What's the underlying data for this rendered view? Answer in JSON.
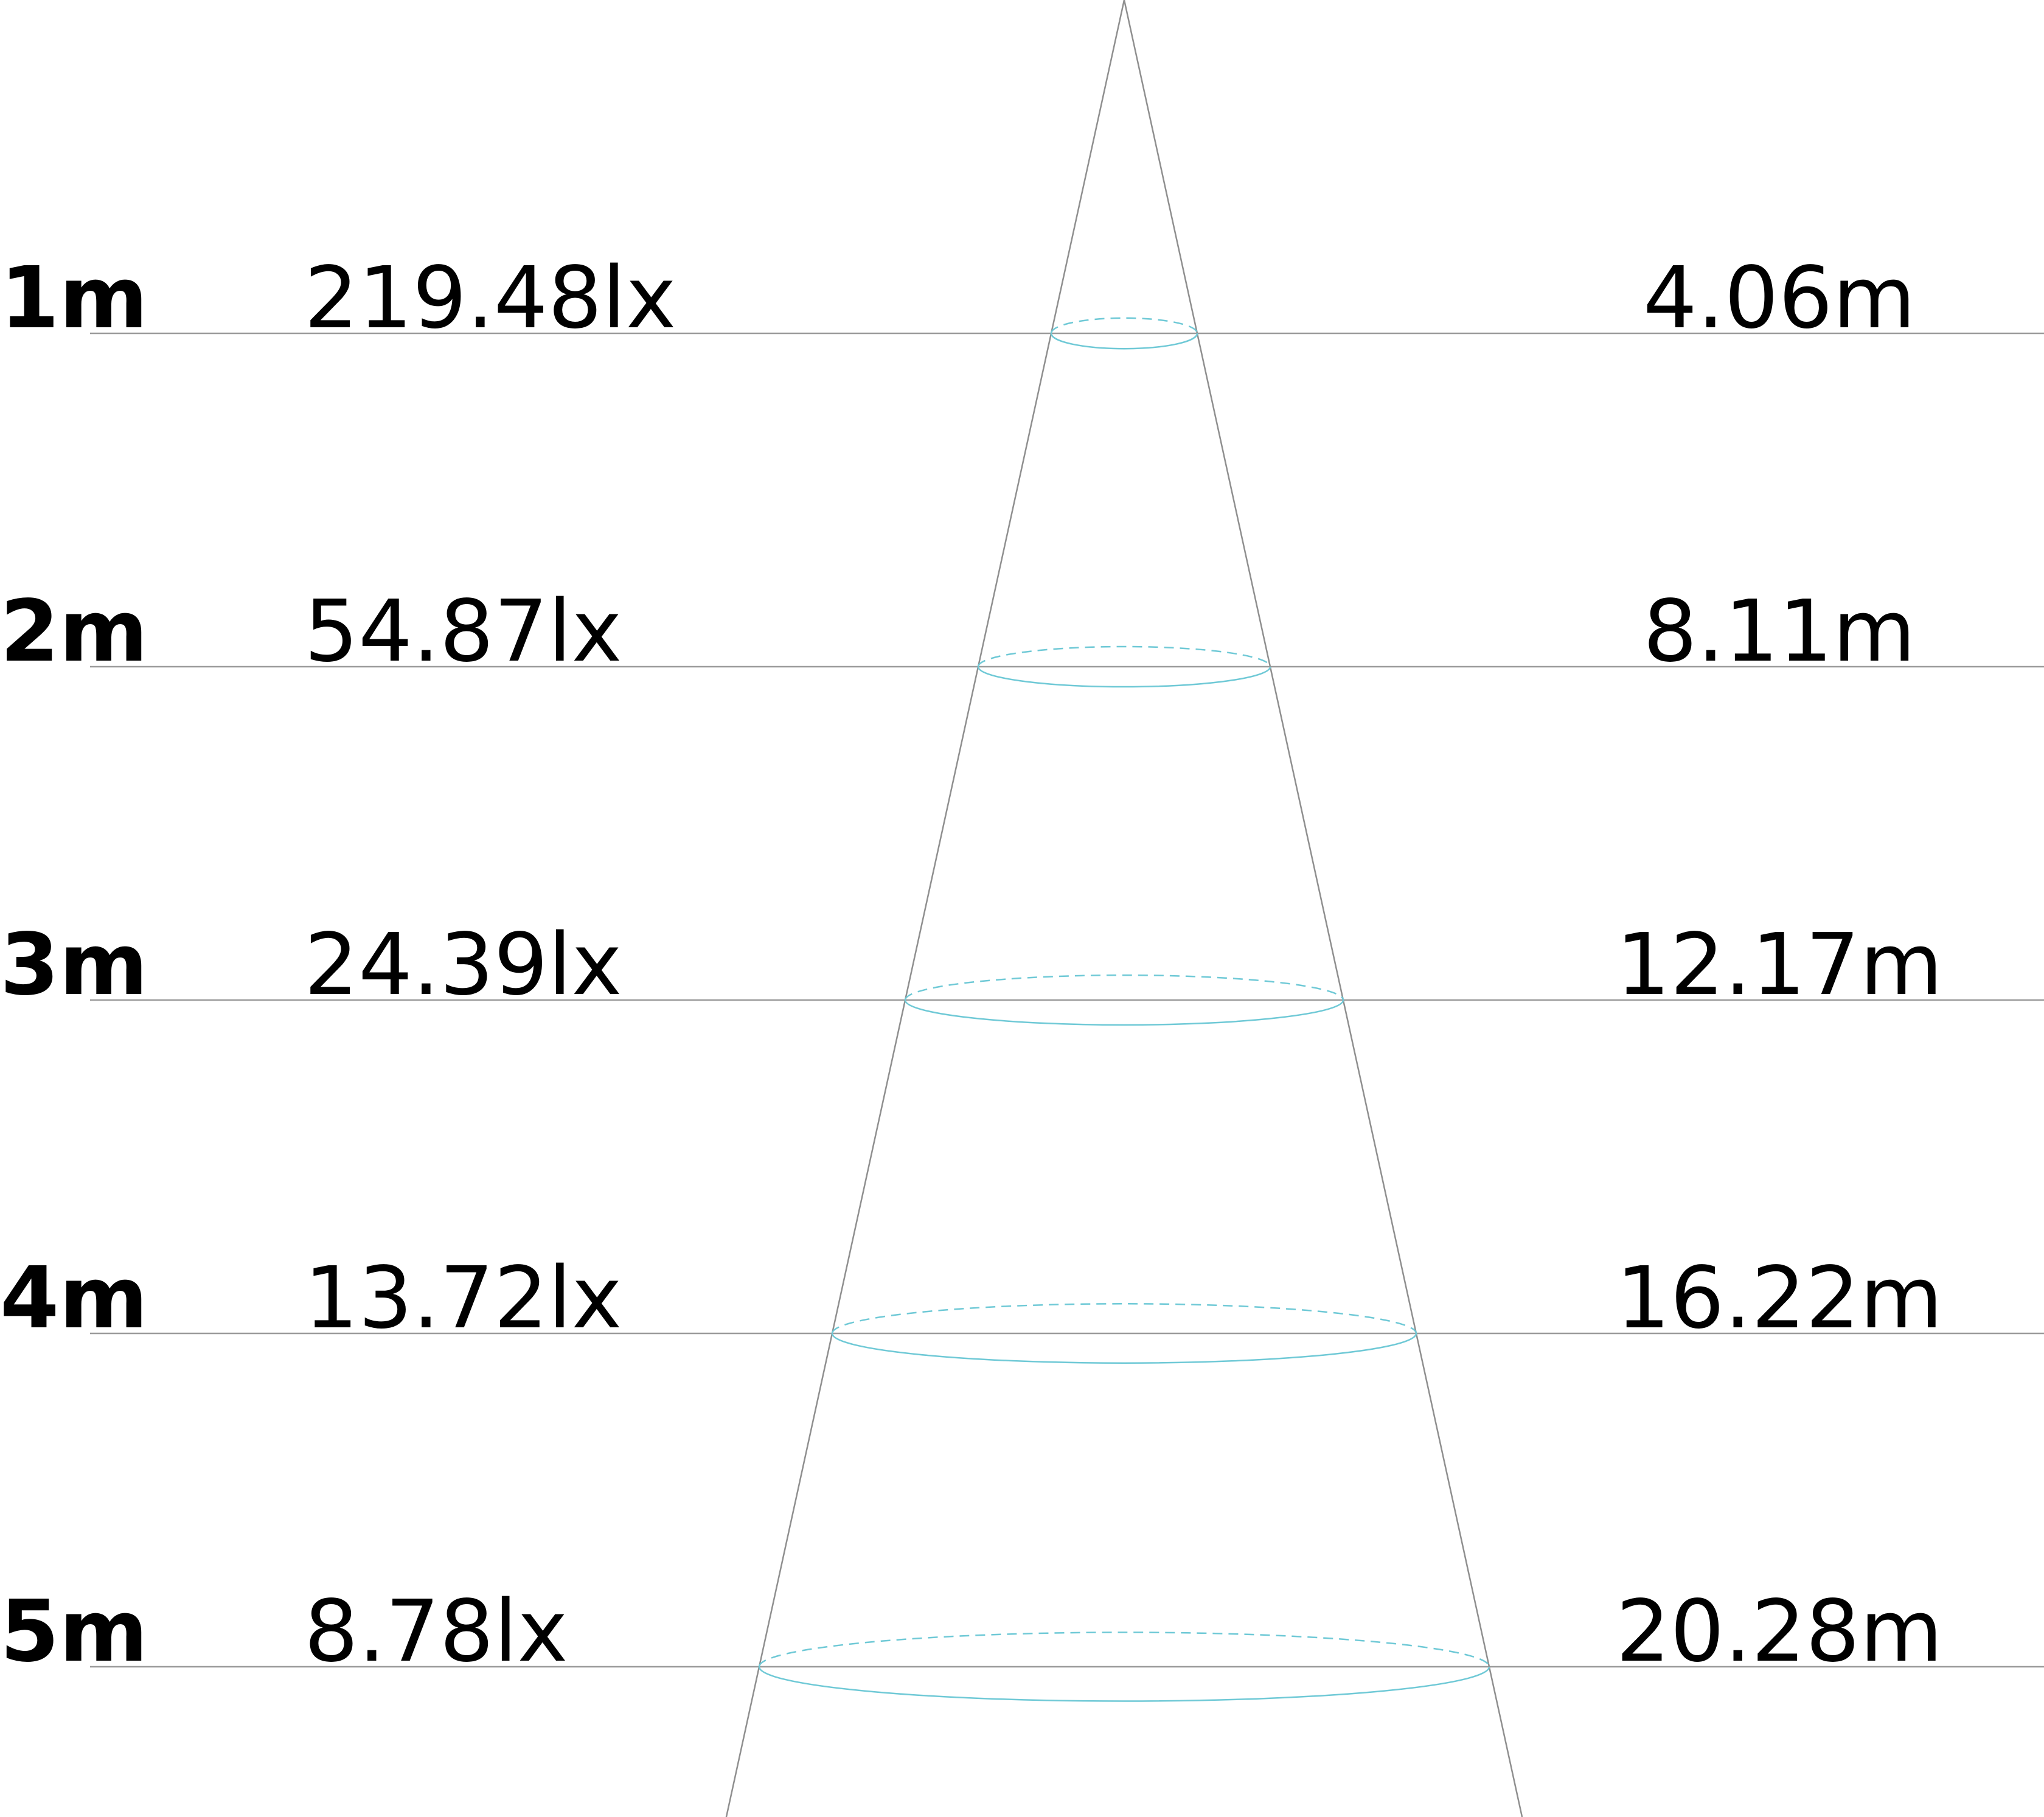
{
  "colors": {
    "background": "#ffffff",
    "text": "#000000",
    "lines": "#9a9a9a",
    "beam_ellipse": "#6fc9d6"
  },
  "levels": [
    {
      "distance": "1m",
      "illuminance": "219.48lx",
      "beam_diameter": "4.06m"
    },
    {
      "distance": "2m",
      "illuminance": "54.87lx",
      "beam_diameter": "8.11m"
    },
    {
      "distance": "3m",
      "illuminance": "24.39lx",
      "beam_diameter": "12.17m"
    },
    {
      "distance": "4m",
      "illuminance": "13.72lx",
      "beam_diameter": "16.22m"
    },
    {
      "distance": "5m",
      "illuminance": "8.78lx",
      "beam_diameter": "20.28m"
    }
  ]
}
